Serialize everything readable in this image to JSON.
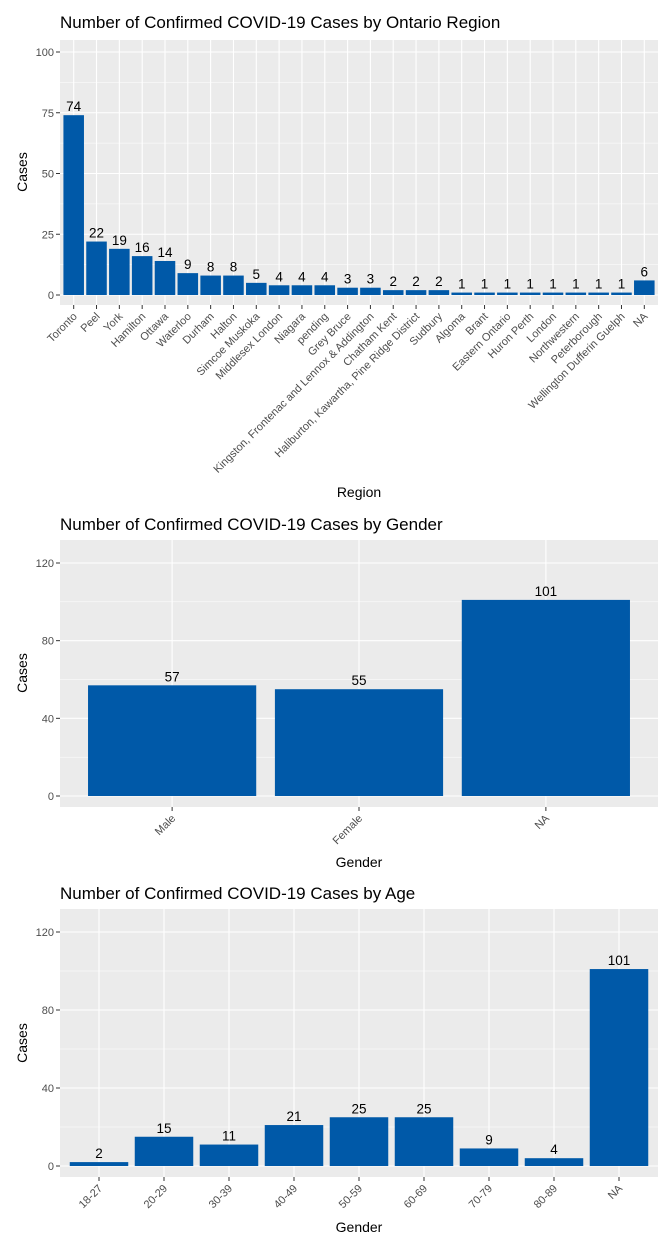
{
  "colors": {
    "bar": "#0059a8",
    "panel": "#ebebeb",
    "grid": "#ffffff"
  },
  "chart_data": [
    {
      "type": "bar",
      "title": "Number of Confirmed COVID-19 Cases by Ontario Region",
      "xlabel": "Region",
      "ylabel": "Cases",
      "ylim": [
        0,
        100
      ],
      "yticks": [
        0,
        25,
        50,
        75,
        100
      ],
      "grid": true,
      "categories": [
        "Toronto",
        "Peel",
        "York",
        "Hamilton",
        "Ottawa",
        "Waterloo",
        "Durham",
        "Halton",
        "Simcoe Muskoka",
        "Middlesex London",
        "Niagara",
        "pending",
        "Grey Bruce",
        "Kingston, Frontenac and Lennox & Addington",
        "Chatham Kent",
        "Haliburton, Kawartha, Pine Ridge District",
        "Sudbury",
        "Algoma",
        "Brant",
        "Eastern Ontario",
        "Huron Perth",
        "London",
        "Northwestern",
        "Peterborough",
        "Wellington Dufferin Guelph",
        "NA"
      ],
      "values": [
        74,
        22,
        19,
        16,
        14,
        9,
        8,
        8,
        5,
        4,
        4,
        4,
        3,
        3,
        2,
        2,
        2,
        1,
        1,
        1,
        1,
        1,
        1,
        1,
        1,
        6
      ]
    },
    {
      "type": "bar",
      "title": "Number of Confirmed COVID-19 Cases by Gender",
      "xlabel": "Gender",
      "ylabel": "Cases",
      "ylim": [
        0,
        120
      ],
      "yticks": [
        0,
        40,
        80,
        120
      ],
      "grid": true,
      "categories": [
        "Male",
        "Female",
        "NA"
      ],
      "values": [
        57,
        55,
        101
      ]
    },
    {
      "type": "bar",
      "title": "Number of Confirmed COVID-19 Cases by Age",
      "xlabel": "Gender",
      "ylabel": "Cases",
      "ylim": [
        0,
        120
      ],
      "yticks": [
        0,
        40,
        80,
        120
      ],
      "grid": true,
      "categories": [
        "18-27",
        "20-29",
        "30-39",
        "40-49",
        "50-59",
        "60-69",
        "70-79",
        "80-89",
        "NA"
      ],
      "values": [
        2,
        15,
        11,
        21,
        25,
        25,
        9,
        4,
        101
      ]
    }
  ]
}
